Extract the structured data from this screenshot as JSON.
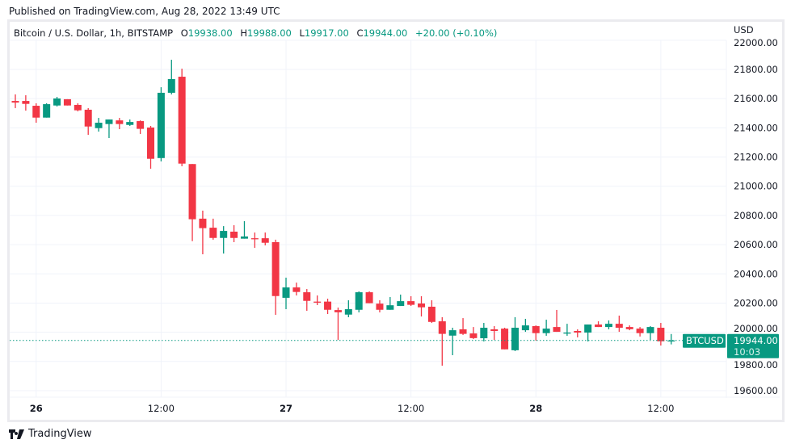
{
  "published": "Published on TradingView.com, Aug 28, 2022 13:49 UTC",
  "legend": {
    "symbol": "Bitcoin / U.S. Dollar, 1h, BITSTAMP",
    "o_label": "O",
    "o": "19938.00",
    "h_label": "H",
    "h": "19988.00",
    "l_label": "L",
    "l": "19917.00",
    "c_label": "C",
    "c": "19944.00",
    "change": "+20.00 (+0.10%)"
  },
  "brand": "TradingView",
  "colors": {
    "up": "#089981",
    "down": "#f23645",
    "grid": "#f0f3fa"
  },
  "chart_data": {
    "type": "candlestick",
    "interval": "1h",
    "currency": "USD",
    "ylim": [
      19500,
      22000
    ],
    "grid": true,
    "y_ticks": [
      "22000.00",
      "21800.00",
      "21600.00",
      "21400.00",
      "21200.00",
      "21000.00",
      "20800.00",
      "20600.00",
      "20400.00",
      "20200.00",
      "20000.00",
      "19800.00",
      "19600.00"
    ],
    "x_ticks": [
      {
        "label": "26",
        "hour": 2,
        "bold": true
      },
      {
        "label": "12:00",
        "hour": 14,
        "bold": false
      },
      {
        "label": "27",
        "hour": 26,
        "bold": true
      },
      {
        "label": "12:00",
        "hour": 38,
        "bold": false
      },
      {
        "label": "28",
        "hour": 50,
        "bold": true
      },
      {
        "label": "12:00",
        "hour": 62,
        "bold": false
      }
    ],
    "first_candle": "Aug 25 22:00",
    "candles_ohlc": [
      [
        21584,
        21629,
        21535,
        21573
      ],
      [
        21584,
        21623,
        21518,
        21564
      ],
      [
        21551,
        21568,
        21435,
        21470
      ],
      [
        21470,
        21568,
        21470,
        21562
      ],
      [
        21553,
        21612,
        21546,
        21601
      ],
      [
        21596,
        21596,
        21553,
        21553
      ],
      [
        21557,
        21568,
        21513,
        21520
      ],
      [
        21524,
        21535,
        21352,
        21409
      ],
      [
        21398,
        21468,
        21374,
        21435
      ],
      [
        21426,
        21457,
        21330,
        21457
      ],
      [
        21451,
        21468,
        21391,
        21426
      ],
      [
        21420,
        21457,
        21413,
        21440
      ],
      [
        21446,
        21451,
        21358,
        21393
      ],
      [
        21402,
        21413,
        21120,
        21188
      ],
      [
        21193,
        21678,
        21170,
        21640
      ],
      [
        21640,
        21866,
        21629,
        21734
      ],
      [
        21750,
        21805,
        21137,
        21155
      ],
      [
        21152,
        21152,
        20624,
        20774
      ],
      [
        20778,
        20833,
        20534,
        20713
      ],
      [
        20716,
        20778,
        20634,
        20646
      ],
      [
        20646,
        20727,
        20539,
        20694
      ],
      [
        20689,
        20733,
        20617,
        20646
      ],
      [
        20641,
        20761,
        20641,
        20656
      ],
      [
        20644,
        20683,
        20578,
        20641
      ],
      [
        20644,
        20683,
        20595,
        20613
      ],
      [
        20617,
        20634,
        20119,
        20248
      ],
      [
        20236,
        20374,
        20158,
        20307
      ],
      [
        20307,
        20340,
        20252,
        20276
      ],
      [
        20274,
        20296,
        20147,
        20215
      ],
      [
        20210,
        20252,
        20186,
        20207
      ],
      [
        20210,
        20230,
        20125,
        20154
      ],
      [
        20152,
        20169,
        19948,
        20137
      ],
      [
        20121,
        20219,
        20103,
        20158
      ],
      [
        20154,
        20280,
        20136,
        20274
      ],
      [
        20274,
        20280,
        20199,
        20199
      ],
      [
        20196,
        20219,
        20136,
        20154
      ],
      [
        20154,
        20241,
        20154,
        20185
      ],
      [
        20180,
        20258,
        20180,
        20213
      ],
      [
        20213,
        20247,
        20180,
        20188
      ],
      [
        20197,
        20247,
        20108,
        20171
      ],
      [
        20175,
        20219,
        20064,
        20071
      ],
      [
        20075,
        20103,
        19771,
        19989
      ],
      [
        19977,
        20031,
        19843,
        20014
      ],
      [
        20020,
        20097,
        19982,
        19989
      ],
      [
        19992,
        20036,
        19954,
        19960
      ],
      [
        19959,
        20064,
        19937,
        20031
      ],
      [
        20020,
        20042,
        19948,
        20009
      ],
      [
        20025,
        20031,
        19883,
        19883
      ],
      [
        19877,
        20103,
        19871,
        20031
      ],
      [
        20014,
        20092,
        20003,
        20047
      ],
      [
        20042,
        20047,
        19943,
        19994
      ],
      [
        19994,
        20086,
        19976,
        20025
      ],
      [
        20036,
        20153,
        20003,
        20003
      ],
      [
        19992,
        20058,
        19976,
        19998
      ],
      [
        20009,
        20020,
        19965,
        19998
      ],
      [
        19998,
        20053,
        19937,
        20053
      ],
      [
        20053,
        20075,
        20036,
        20036
      ],
      [
        20036,
        20081,
        20020,
        20058
      ],
      [
        20058,
        20114,
        20003,
        20031
      ],
      [
        20036,
        20047,
        20014,
        20021
      ],
      [
        20025,
        20036,
        19971,
        19994
      ],
      [
        19994,
        20042,
        19948,
        20036
      ],
      [
        20031,
        20064,
        19909,
        19938
      ],
      [
        19938,
        19988,
        19917,
        19944
      ]
    ],
    "last_price": {
      "symbol": "BTCUSD",
      "price": "19944.00",
      "countdown": "10:03"
    }
  }
}
